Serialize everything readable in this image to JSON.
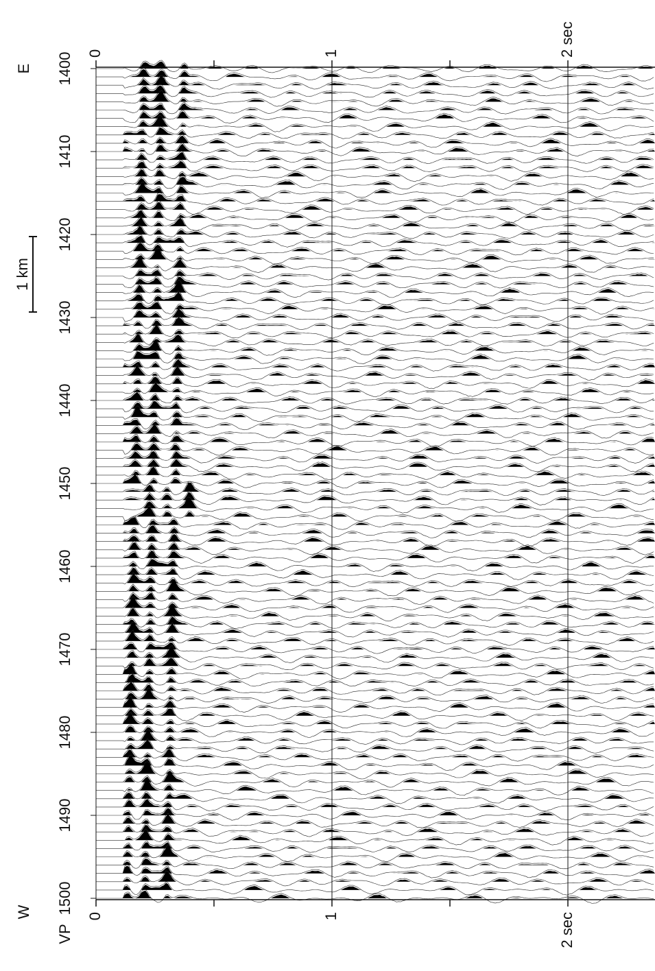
{
  "labels": {
    "east": "E",
    "west": "W",
    "vp": "VP",
    "scale": "1 km"
  },
  "vp_ticks": [
    "1400",
    "1410",
    "1420",
    "1430",
    "1440",
    "1450",
    "1460",
    "1470",
    "1480",
    "1490",
    "1500"
  ],
  "time_ticks_top": [
    "0",
    "1",
    "2 sec"
  ],
  "time_ticks_bottom": [
    "0",
    "1",
    "2 sec"
  ]
}
